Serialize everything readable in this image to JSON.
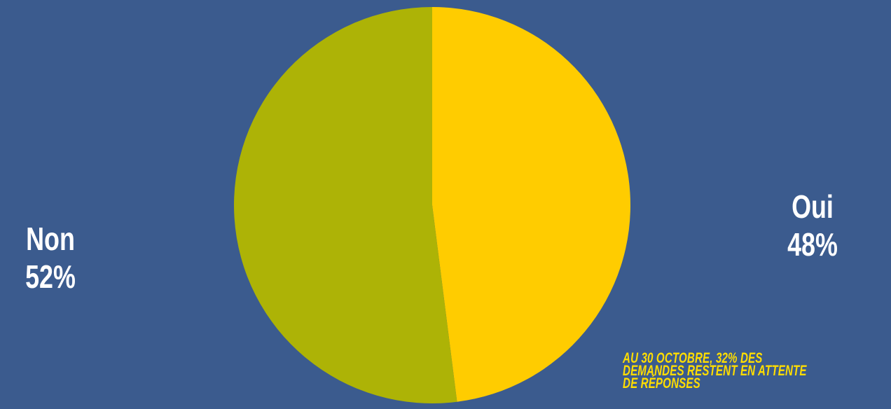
{
  "chart_data": {
    "type": "pie",
    "slices": [
      {
        "label": "Oui",
        "value": 48,
        "display": "48%",
        "color": "#ffcc00"
      },
      {
        "label": "Non",
        "value": 52,
        "display": "52%",
        "color": "#adb306"
      }
    ],
    "start_angle_deg": 0,
    "direction": "clockwise"
  },
  "annotation": {
    "text": "Au 30 octobre, 32% des demandes restent en attente de réponses",
    "color": "#ffdd00"
  },
  "colors": {
    "background": "#3b5b8e",
    "label_text": "#ffffff"
  }
}
